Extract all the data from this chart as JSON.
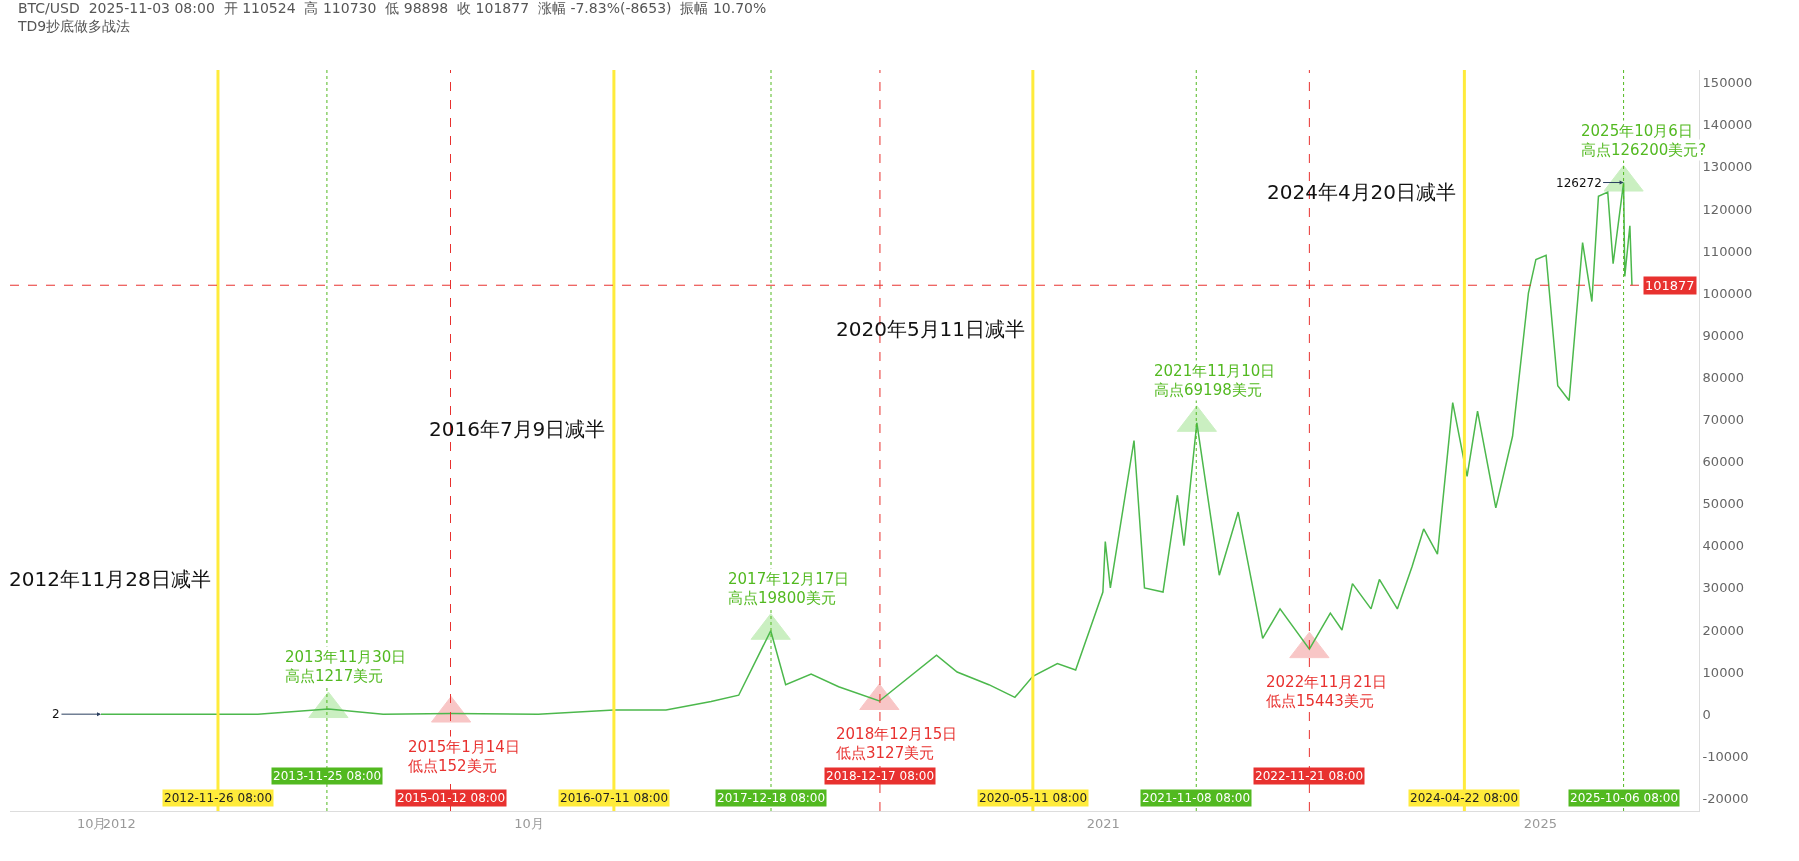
{
  "chart_data": {
    "type": "line",
    "title": "BTC/USD  2025-11-03 08:00  开 110524  高 110730  低 98898  收 101877  涨幅 -7.83%(-8653)  振幅 10.70%",
    "subtitle": "TD9抄底做多战法",
    "x": [
      "2011-11-01",
      "2012-11-26",
      "2013-04-08",
      "2013-11-30",
      "2014-06-01",
      "2015-01-14",
      "2015-11-01",
      "2016-07-11",
      "2017-01-01",
      "2017-06-01",
      "2017-09-01",
      "2017-12-17",
      "2018-02-05",
      "2018-05-01",
      "2018-08-01",
      "2018-12-15",
      "2019-06-24",
      "2019-09-01",
      "2019-12-16",
      "2020-03-12",
      "2020-05-11",
      "2020-08-01",
      "2020-10-01",
      "2020-12-31",
      "2021-01-08",
      "2021-01-25",
      "2021-04-14",
      "2021-05-19",
      "2021-07-20",
      "2021-09-06",
      "2021-09-28",
      "2021-11-10",
      "2022-01-24",
      "2022-03-28",
      "2022-06-18",
      "2022-08-15",
      "2022-11-21",
      "2023-01-30",
      "2023-03-10",
      "2023-04-14",
      "2023-06-15",
      "2023-07-13",
      "2023-09-11",
      "2023-10-30",
      "2023-12-08",
      "2024-01-23",
      "2024-03-14",
      "2024-05-01",
      "2024-06-05",
      "2024-08-05",
      "2024-09-30",
      "2024-11-22",
      "2024-12-17",
      "2025-01-20",
      "2025-02-28",
      "2025-04-07",
      "2025-05-22",
      "2025-06-22",
      "2025-07-14",
      "2025-08-14",
      "2025-09-01",
      "2025-10-06",
      "2025-10-10",
      "2025-10-27",
      "2025-11-03"
    ],
    "series": [
      {
        "color": "#4cb84c",
        "values": [
          0,
          0,
          0,
          1217,
          0,
          152,
          0,
          1000,
          1000,
          3000,
          4500,
          19800,
          7000,
          9500,
          6500,
          3127,
          14000,
          10000,
          7000,
          4000,
          9000,
          12000,
          10500,
          29000,
          41000,
          30000,
          65000,
          30000,
          29000,
          52000,
          40000,
          69198,
          33000,
          48000,
          18000,
          25000,
          15443,
          24000,
          20000,
          31000,
          25000,
          32000,
          25000,
          35000,
          44000,
          38000,
          74000,
          56500,
          72000,
          49000,
          66000,
          100000,
          108000,
          109000,
          78000,
          74500,
          112000,
          98000,
          123000,
          124000,
          107000,
          126272,
          104000,
          116000,
          101877
        ]
      },
      {
        "type": "scatter",
        "marker": "triangle",
        "color": "#8cdc78",
        "x": [
          "2013-11-30",
          "2017-12-17",
          "2021-11-10",
          "2025-10-06"
        ],
        "values": [
          1217,
          19800,
          69198,
          126272
        ]
      },
      {
        "type": "scatter",
        "marker": "triangle",
        "color": "#f08282",
        "x": [
          "2015-01-14",
          "2018-12-15",
          "2022-11-21"
        ],
        "values": [
          152,
          3127,
          15443
        ]
      }
    ],
    "xlim": [
      "2011-01-01",
      "2026-06-15"
    ],
    "xticks": [
      {
        "value": "2011-10-01",
        "label": "10月"
      },
      {
        "value": "2012-01-01",
        "label": "2012"
      },
      {
        "value": "2015-10-01",
        "label": "10月"
      },
      {
        "value": "2021-01-01",
        "label": "2021"
      },
      {
        "value": "2025-01-01",
        "label": "2025"
      }
    ],
    "ylim": [
      -23000,
      153000
    ],
    "yticks": [
      -20000,
      -10000,
      0,
      10000,
      20000,
      30000,
      40000,
      50000,
      60000,
      70000,
      80000,
      90000,
      100000,
      110000,
      120000,
      130000,
      140000,
      150000
    ],
    "marker": "none",
    "line_style": "solid",
    "ref_lines": [
      {
        "axis": "x",
        "value": "2012-11-26",
        "label": "2012-11-26 08:00",
        "color": "#ffeb3b",
        "line_style": "solid"
      },
      {
        "axis": "x",
        "value": "2013-11-25",
        "label": "2013-11-25 08:00",
        "color": "#52b920",
        "line_style": "dotted"
      },
      {
        "axis": "x",
        "value": "2015-01-12",
        "label": "2015-01-12 08:00",
        "color": "#e8312f",
        "line_style": "dashed"
      },
      {
        "axis": "x",
        "value": "2016-07-11",
        "label": "2016-07-11 08:00",
        "color": "#ffeb3b",
        "line_style": "solid"
      },
      {
        "axis": "x",
        "value": "2017-12-18",
        "label": "2017-12-18 08:00",
        "color": "#52b920",
        "line_style": "dotted"
      },
      {
        "axis": "x",
        "value": "2018-12-17",
        "label": "2018-12-17 08:00",
        "color": "#e8312f",
        "line_style": "dashed"
      },
      {
        "axis": "x",
        "value": "2020-05-11",
        "label": "2020-05-11 08:00",
        "color": "#ffeb3b",
        "line_style": "solid"
      },
      {
        "axis": "x",
        "value": "2021-11-08",
        "label": "2021-11-08 08:00",
        "color": "#52b920",
        "line_style": "dotted"
      },
      {
        "axis": "x",
        "value": "2022-11-21",
        "label": "2022-11-21 08:00",
        "color": "#e8312f",
        "line_style": "dashed"
      },
      {
        "axis": "x",
        "value": "2024-04-22",
        "label": "2024-04-22 08:00",
        "color": "#ffeb3b",
        "line_style": "solid"
      },
      {
        "axis": "x",
        "value": "2025-10-06",
        "label": "2025-10-06 08:00",
        "color": "#52b920",
        "line_style": "dotted"
      },
      {
        "axis": "y",
        "value": 101877,
        "label": "101877",
        "color": "#e8312f",
        "line_style": "dashed"
      }
    ],
    "annotations": [
      {
        "text": "2012年11月28日减半",
        "x": "2012-11-28",
        "y": 32000
      },
      {
        "text": "2016年7月9日减半",
        "x": "2016-07-09",
        "y": 67700
      },
      {
        "text": "2020年5月11日减半",
        "x": "2020-05-11",
        "y": 91600
      },
      {
        "text": "2024年4月20日减半",
        "x": "2024-04-20",
        "y": 124000
      },
      {
        "text": "2013年11月30日",
        "x": "2013-11-30",
        "y": 1217
      },
      {
        "text": "高点1217美元",
        "x": "2013-11-30",
        "y": 1217
      },
      {
        "text": "2015年1月14日",
        "x": "2015-01-14",
        "y": 152
      },
      {
        "text": "低点152美元",
        "x": "2015-01-14",
        "y": 152
      },
      {
        "text": "2017年12月17日",
        "x": "2017-12-17",
        "y": 19800
      },
      {
        "text": "高点19800美元",
        "x": "2017-12-17",
        "y": 19800
      },
      {
        "text": "2018年12月15日",
        "x": "2018-12-15",
        "y": 3127
      },
      {
        "text": "低点3127美元",
        "x": "2018-12-15",
        "y": 3127
      },
      {
        "text": "2021年11月10日",
        "x": "2021-11-10",
        "y": 69198
      },
      {
        "text": "高点69198美元",
        "x": "2021-11-10",
        "y": 69198
      },
      {
        "text": "2022年11月21日",
        "x": "2022-11-21",
        "y": 15443
      },
      {
        "text": "低点15443美元",
        "x": "2022-11-21",
        "y": 15443
      },
      {
        "text": "2025年10月6日",
        "x": "2025-10-06",
        "y": 126200
      },
      {
        "text": "高点126200美元?",
        "x": "2025-10-06",
        "y": 126200
      },
      {
        "text": "126272",
        "x": "2025-10-06",
        "y": 126272
      },
      {
        "text": "2",
        "x": "2011-11-01",
        "y": 2
      }
    ]
  }
}
